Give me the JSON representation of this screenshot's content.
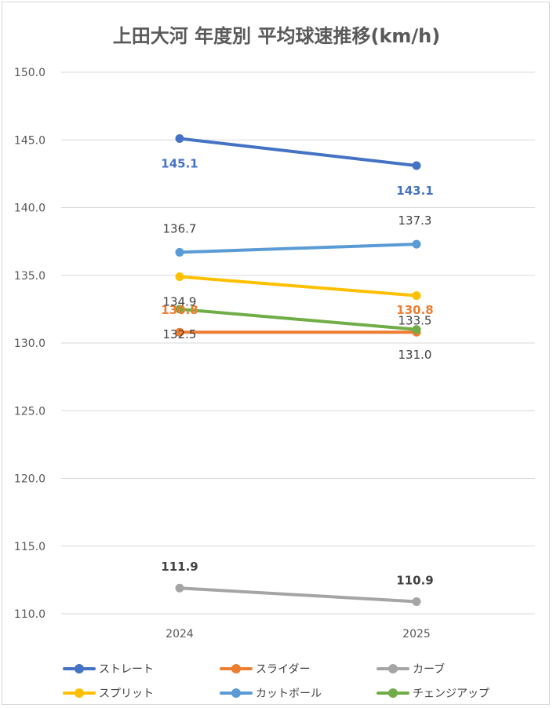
{
  "chart_data": {
    "type": "line",
    "title": "上田大河 年度別 平均球速推移(km/h)",
    "categories": [
      "2024",
      "2025"
    ],
    "ylim": [
      110,
      150
    ],
    "yticks": [
      "110.0",
      "115.0",
      "120.0",
      "125.0",
      "130.0",
      "135.0",
      "140.0",
      "145.0",
      "150.0"
    ],
    "grid": true,
    "legend_position": "bottom",
    "series": [
      {
        "name": "ストレート",
        "color": "#4472c4",
        "values": [
          145.1,
          143.1
        ],
        "labels": [
          "145.1",
          "143.1"
        ],
        "label_color": "#4472c4",
        "label_bold": true
      },
      {
        "name": "スライダー",
        "color": "#ed7d31",
        "values": [
          130.8,
          130.8
        ],
        "labels": [
          "130.8",
          "130.8"
        ],
        "label_color": "#ed7d31",
        "label_bold": true
      },
      {
        "name": "カーブ",
        "color": "#a5a5a5",
        "values": [
          111.9,
          110.9
        ],
        "labels": [
          "111.9",
          "110.9"
        ],
        "label_color": "#404040",
        "label_bold": true
      },
      {
        "name": "スプリット",
        "color": "#ffc000",
        "values": [
          134.9,
          133.5
        ],
        "labels": [
          "134.9",
          "133.5"
        ],
        "label_color": "#404040",
        "label_bold": false
      },
      {
        "name": "カットボール",
        "color": "#5b9bd5",
        "values": [
          136.7,
          137.3
        ],
        "labels": [
          "136.7",
          "137.3"
        ],
        "label_color": "#404040",
        "label_bold": false
      },
      {
        "name": "チェンジアップ",
        "color": "#70ad47",
        "values": [
          132.5,
          131.0
        ],
        "labels": [
          "132.5",
          "131.0"
        ],
        "label_color": "#404040",
        "label_bold": false
      }
    ]
  }
}
